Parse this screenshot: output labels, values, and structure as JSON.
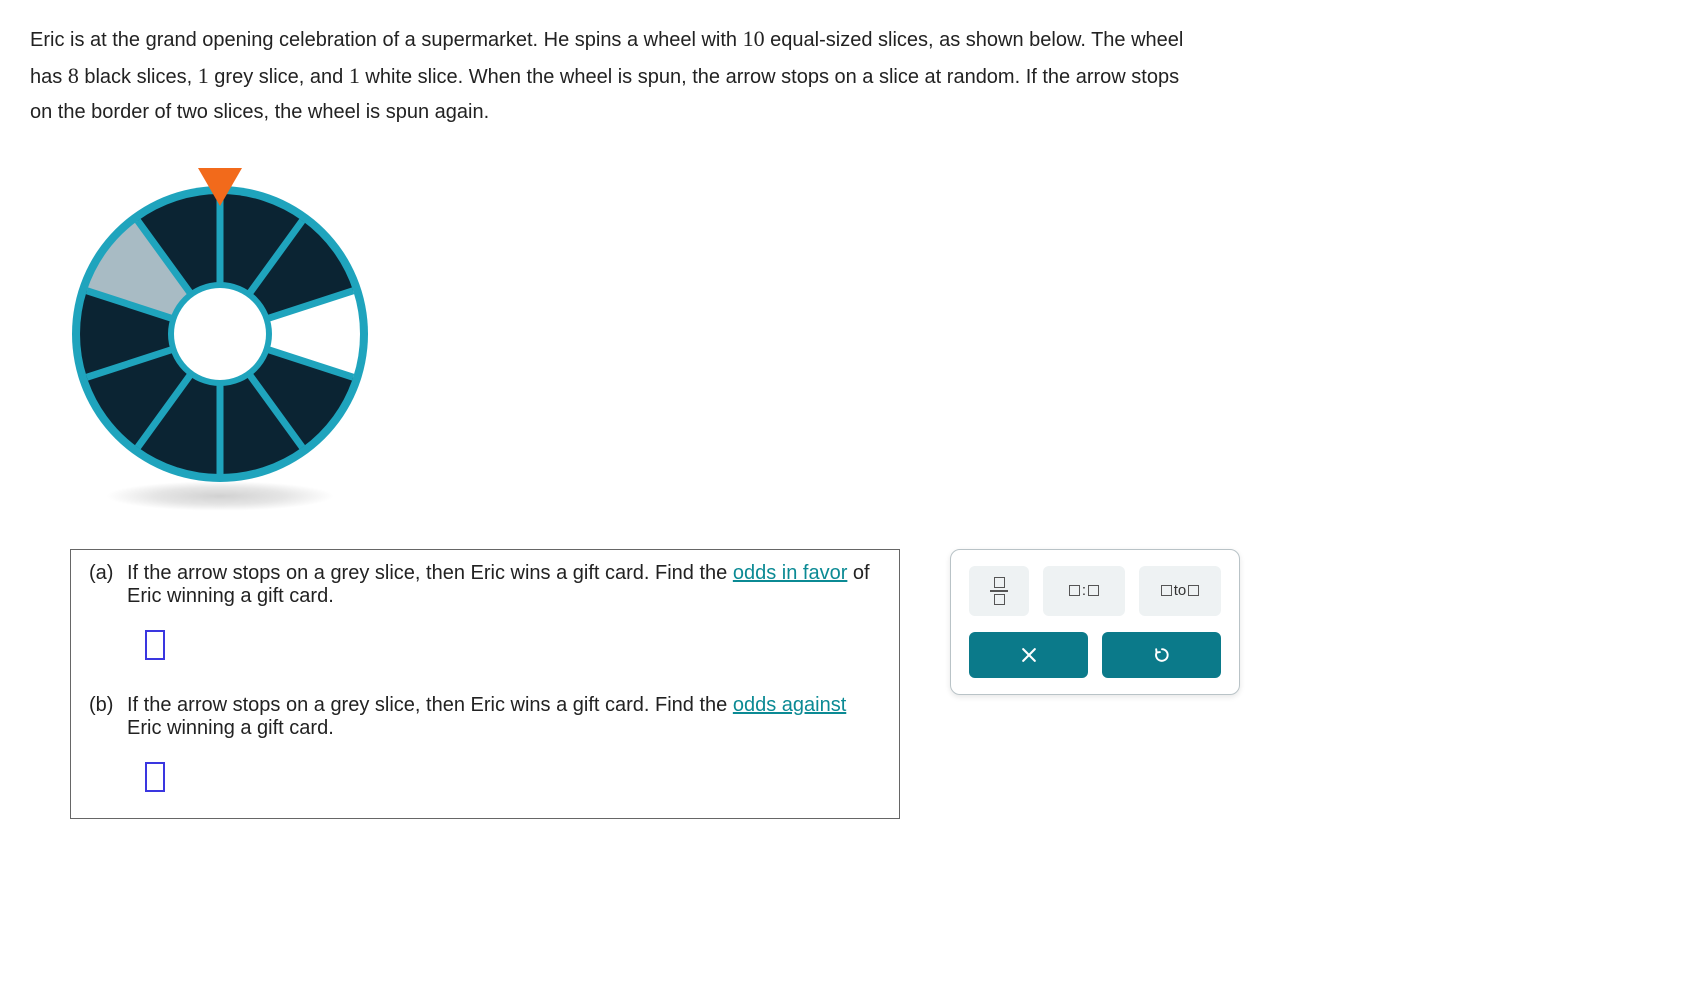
{
  "problem": {
    "line1_a": "Eric is at the grand opening celebration of a supermarket. He spins a wheel with ",
    "num10": "10",
    "line1_b": " equal-sized slices, as shown below. The wheel",
    "line2_a": "has ",
    "num8": "8",
    "line2_b": " black slices, ",
    "num1a": "1",
    "line2_c": " grey slice, and ",
    "num1b": "1",
    "line2_d": " white slice. When the wheel is spun, the arrow stops on a slice at random. If the arrow stops",
    "line3": "on the border of two slices, the wheel is spun again."
  },
  "wheel": {
    "slices": 10,
    "outer_radius": 140,
    "inner_radius": 46,
    "ring_color": "#1fa4bd",
    "divider_color": "#1fa4bd",
    "pointer_color": "#f26a1b",
    "hub_fill": "#ffffff",
    "colors": [
      "#0b2433",
      "#0b2433",
      "#ffffff",
      "#0b2433",
      "#0b2433",
      "#0b2433",
      "#0b2433",
      "#0b2433",
      "#a8bbc4",
      "#0b2433"
    ],
    "start_angle_deg": -90
  },
  "parts": {
    "a": {
      "label": "(a)",
      "text_before": "If the arrow stops on a grey slice, then Eric wins a gift card. Find the ",
      "link": "odds in favor",
      "text_after": " of Eric winning a gift card."
    },
    "b": {
      "label": "(b)",
      "text_before": "If the arrow stops on a grey slice, then Eric wins a gift card. Find the ",
      "link": "odds against",
      "text_after": " Eric winning a gift card."
    }
  },
  "toolbox": {
    "ratio_sep": ":",
    "to_word": " to ",
    "action_clear": "×",
    "action_reset": "↺"
  }
}
